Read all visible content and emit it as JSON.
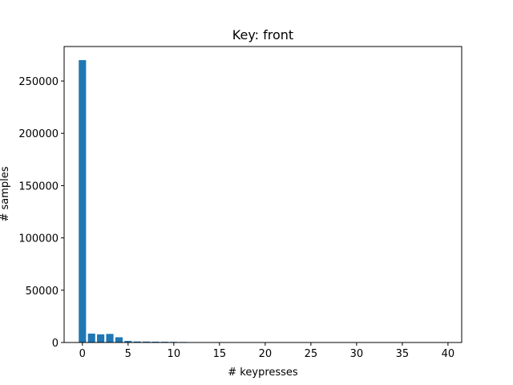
{
  "chart_data": {
    "type": "bar",
    "title": "Key: front",
    "xlabel": "# keypresses",
    "ylabel": "# samples",
    "xlim": [
      -2,
      41.5
    ],
    "ylim": [
      0,
      283000
    ],
    "xticks": [
      0,
      5,
      10,
      15,
      20,
      25,
      30,
      35,
      40
    ],
    "yticks": [
      0,
      50000,
      100000,
      150000,
      200000,
      250000
    ],
    "grid": false,
    "bar_color": "#1f77b4",
    "x": [
      0,
      1,
      2,
      3,
      4,
      5,
      6,
      7,
      8,
      9,
      10,
      11
    ],
    "values": [
      270000,
      8500,
      7800,
      8200,
      5000,
      1500,
      1000,
      900,
      800,
      700,
      600,
      500
    ]
  }
}
